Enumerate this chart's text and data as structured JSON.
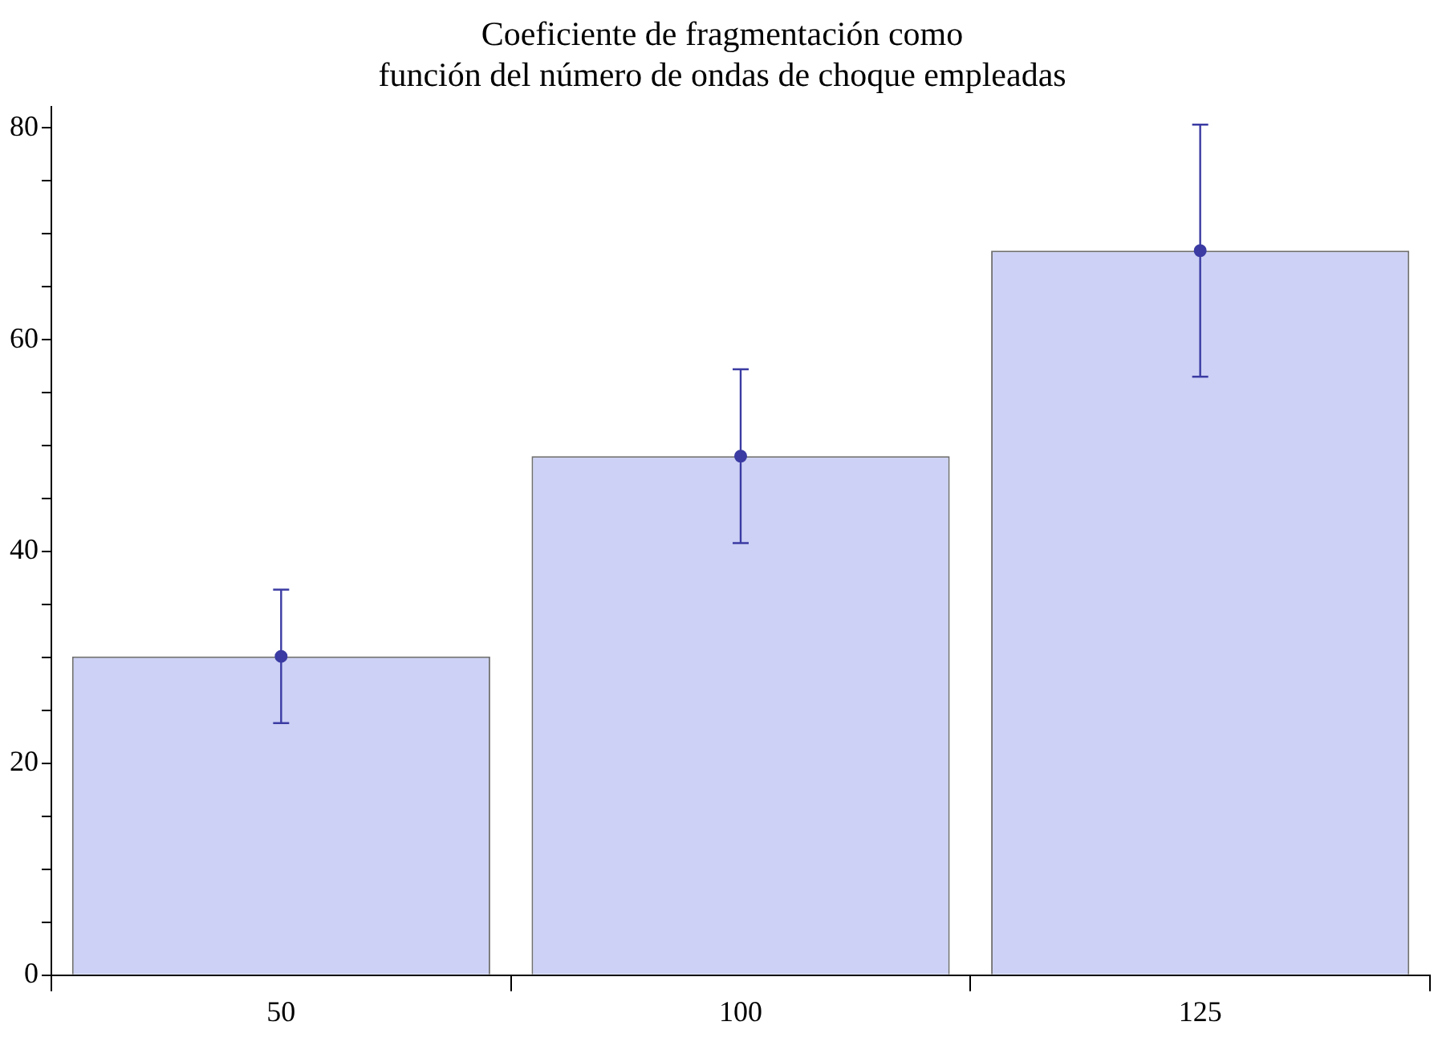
{
  "chart_data": {
    "type": "bar",
    "title": "Coeficiente de fragmentación como\nfunción del número de ondas de choque empleadas",
    "categories": [
      "50",
      "100",
      "125"
    ],
    "series": [
      {
        "type": "bar",
        "color": "#ccd1f5",
        "values": [
          30.1,
          49.0,
          68.4
        ]
      },
      {
        "type": "scatter",
        "color": "#3b3ba3",
        "x": [
          "50",
          "100",
          "125"
        ],
        "values": [
          30.1,
          49.0,
          68.4
        ],
        "errors": [
          6.3,
          8.2,
          11.9
        ]
      }
    ],
    "marker": "circle",
    "ylim": [
      0,
      82
    ],
    "yticks": [
      0,
      {
        "value": 5,
        "label": null
      },
      {
        "value": 10,
        "label": null
      },
      {
        "value": 15,
        "label": null
      },
      20,
      {
        "value": 25,
        "label": null
      },
      {
        "value": 30,
        "label": null
      },
      {
        "value": 35,
        "label": null
      },
      40,
      {
        "value": 45,
        "label": null
      },
      {
        "value": 50,
        "label": null
      },
      {
        "value": 55,
        "label": null
      },
      60,
      {
        "value": 65,
        "label": null
      },
      {
        "value": 70,
        "label": null
      },
      {
        "value": 75,
        "label": null
      },
      80
    ],
    "grid": false,
    "legend": false
  }
}
